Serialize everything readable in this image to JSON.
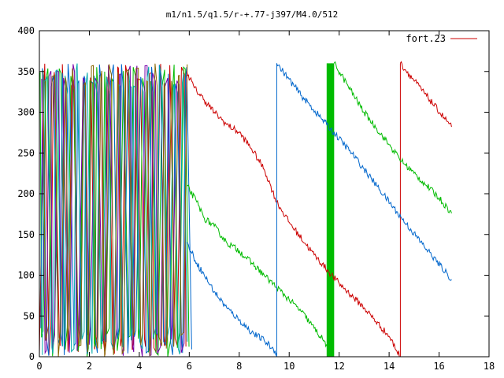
{
  "chart_data": {
    "type": "line",
    "title": "m1/n1.5/q1.5/r-+.77-j397/M4.0/512",
    "xlabel": "",
    "ylabel": "",
    "xlim": [
      0,
      18
    ],
    "ylim": [
      0,
      400
    ],
    "x_ticks": [
      0,
      2,
      4,
      6,
      8,
      10,
      12,
      14,
      16,
      18
    ],
    "y_ticks": [
      0,
      50,
      100,
      150,
      200,
      250,
      300,
      350,
      400
    ],
    "grid": false,
    "legend": {
      "position": "top-right",
      "entries": [
        {
          "label": "fort.23",
          "color": "#cc0000"
        }
      ]
    },
    "series": [
      {
        "color": "#cc0000",
        "segments": [
          [
            [
              5.9,
              350
            ],
            [
              6.2,
              330
            ],
            [
              6.6,
              315
            ],
            [
              7.0,
              300
            ],
            [
              7.5,
              285
            ],
            [
              8.0,
              275
            ],
            [
              8.5,
              255
            ],
            [
              9.0,
              230
            ],
            [
              9.5,
              190
            ],
            [
              10.0,
              165
            ],
            [
              11.0,
              125
            ],
            [
              12.0,
              90
            ],
            [
              13.0,
              60
            ],
            [
              14.0,
              25
            ],
            [
              14.45,
              0
            ]
          ],
          [
            [
              14.45,
              0
            ],
            [
              14.45,
              360
            ]
          ],
          [
            [
              14.45,
              360
            ],
            [
              15.5,
              320
            ],
            [
              16.5,
              282
            ]
          ]
        ]
      },
      {
        "color": "#00bb00",
        "segments": [
          [
            [
              5.9,
              210
            ],
            [
              6.3,
              190
            ],
            [
              6.6,
              170
            ],
            [
              7.0,
              160
            ],
            [
              7.5,
              140
            ],
            [
              8.0,
              130
            ],
            [
              8.5,
              115
            ],
            [
              9.0,
              100
            ],
            [
              9.5,
              85
            ],
            [
              10.0,
              70
            ],
            [
              10.5,
              55
            ],
            [
              11.0,
              35
            ],
            [
              11.5,
              15
            ],
            [
              11.6,
              5
            ]
          ],
          [
            [
              11.7,
              0
            ],
            [
              11.7,
              360
            ]
          ],
          [
            [
              11.8,
              360
            ],
            [
              12.3,
              335
            ],
            [
              13.0,
              300
            ],
            [
              13.5,
              280
            ],
            [
              14.0,
              260
            ],
            [
              14.5,
              240
            ],
            [
              15.0,
              225
            ],
            [
              15.5,
              210
            ],
            [
              16.0,
              195
            ],
            [
              16.5,
              176
            ]
          ]
        ]
      },
      {
        "color": "#0066cc",
        "segments": [
          [
            [
              5.9,
              140
            ],
            [
              6.3,
              115
            ],
            [
              6.6,
              100
            ],
            [
              7.0,
              80
            ],
            [
              7.5,
              60
            ],
            [
              8.0,
              45
            ],
            [
              8.5,
              30
            ],
            [
              9.0,
              20
            ],
            [
              9.5,
              5
            ]
          ],
          [
            [
              9.5,
              0
            ],
            [
              9.5,
              360
            ]
          ],
          [
            [
              9.5,
              360
            ],
            [
              10.5,
              320
            ],
            [
              11.5,
              285
            ],
            [
              12.5,
              250
            ],
            [
              13.5,
              210
            ],
            [
              14.5,
              170
            ],
            [
              15.5,
              132
            ],
            [
              16.5,
              95
            ]
          ]
        ]
      }
    ],
    "dense_region": {
      "x_range": [
        0,
        5.9
      ],
      "y_range": [
        0,
        360
      ],
      "colors": [
        "#cc0000",
        "#00bb00",
        "#0066cc",
        "#7700aa",
        "#00aaaa",
        "#886600"
      ]
    },
    "bar_region": {
      "x_range": [
        11.5,
        11.8
      ],
      "y_range": [
        0,
        360
      ],
      "color": "#00bb00"
    }
  }
}
